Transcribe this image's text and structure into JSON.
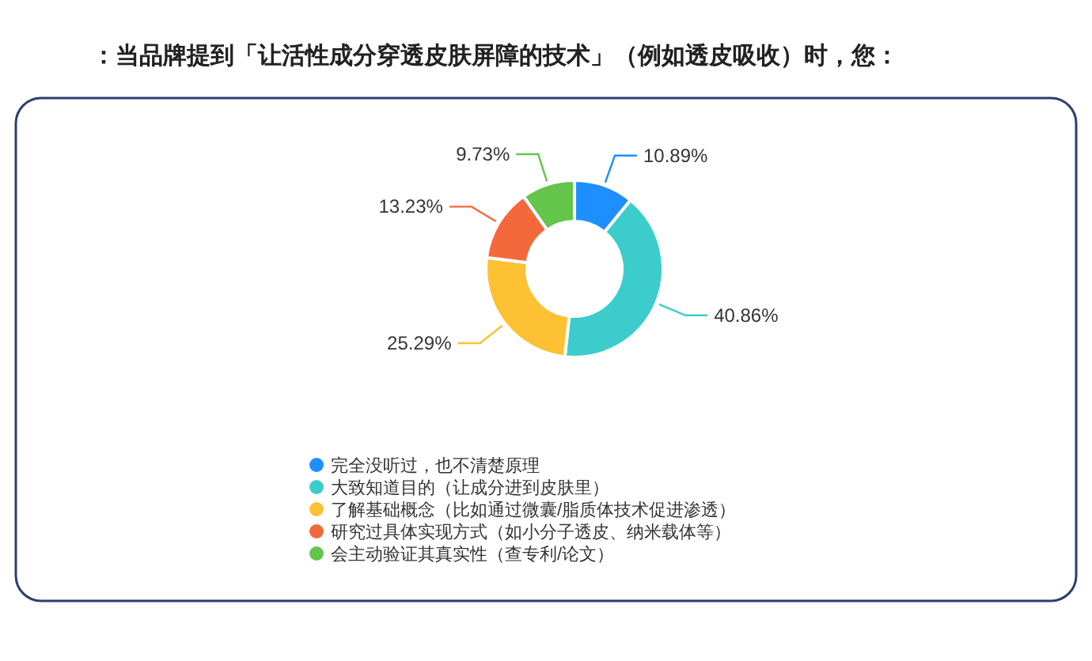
{
  "chart_data": {
    "type": "donut",
    "title": "：当品牌提到「让活性成分穿透皮肤屏障的技术」（例如透皮吸收）时，您：",
    "categories": [
      "完全没听过，也不清楚原理",
      "大致知道目的（让成分进到皮肤里）",
      "了解基础概念（比如通过微囊/脂质体技术促进渗透）",
      "研究过具体实现方式（如小分子透皮、纳米载体等）",
      "会主动验证其真实性（查专利/论文）"
    ],
    "values": [
      10.89,
      40.86,
      25.29,
      13.23,
      9.73
    ],
    "colors": [
      "#1e8fff",
      "#3ccccc",
      "#fdc133",
      "#f4693c",
      "#63c54a"
    ],
    "value_labels": [
      "10.89%",
      "40.86%",
      "25.29%",
      "13.23%",
      "9.73%"
    ],
    "legend": "bottom"
  }
}
